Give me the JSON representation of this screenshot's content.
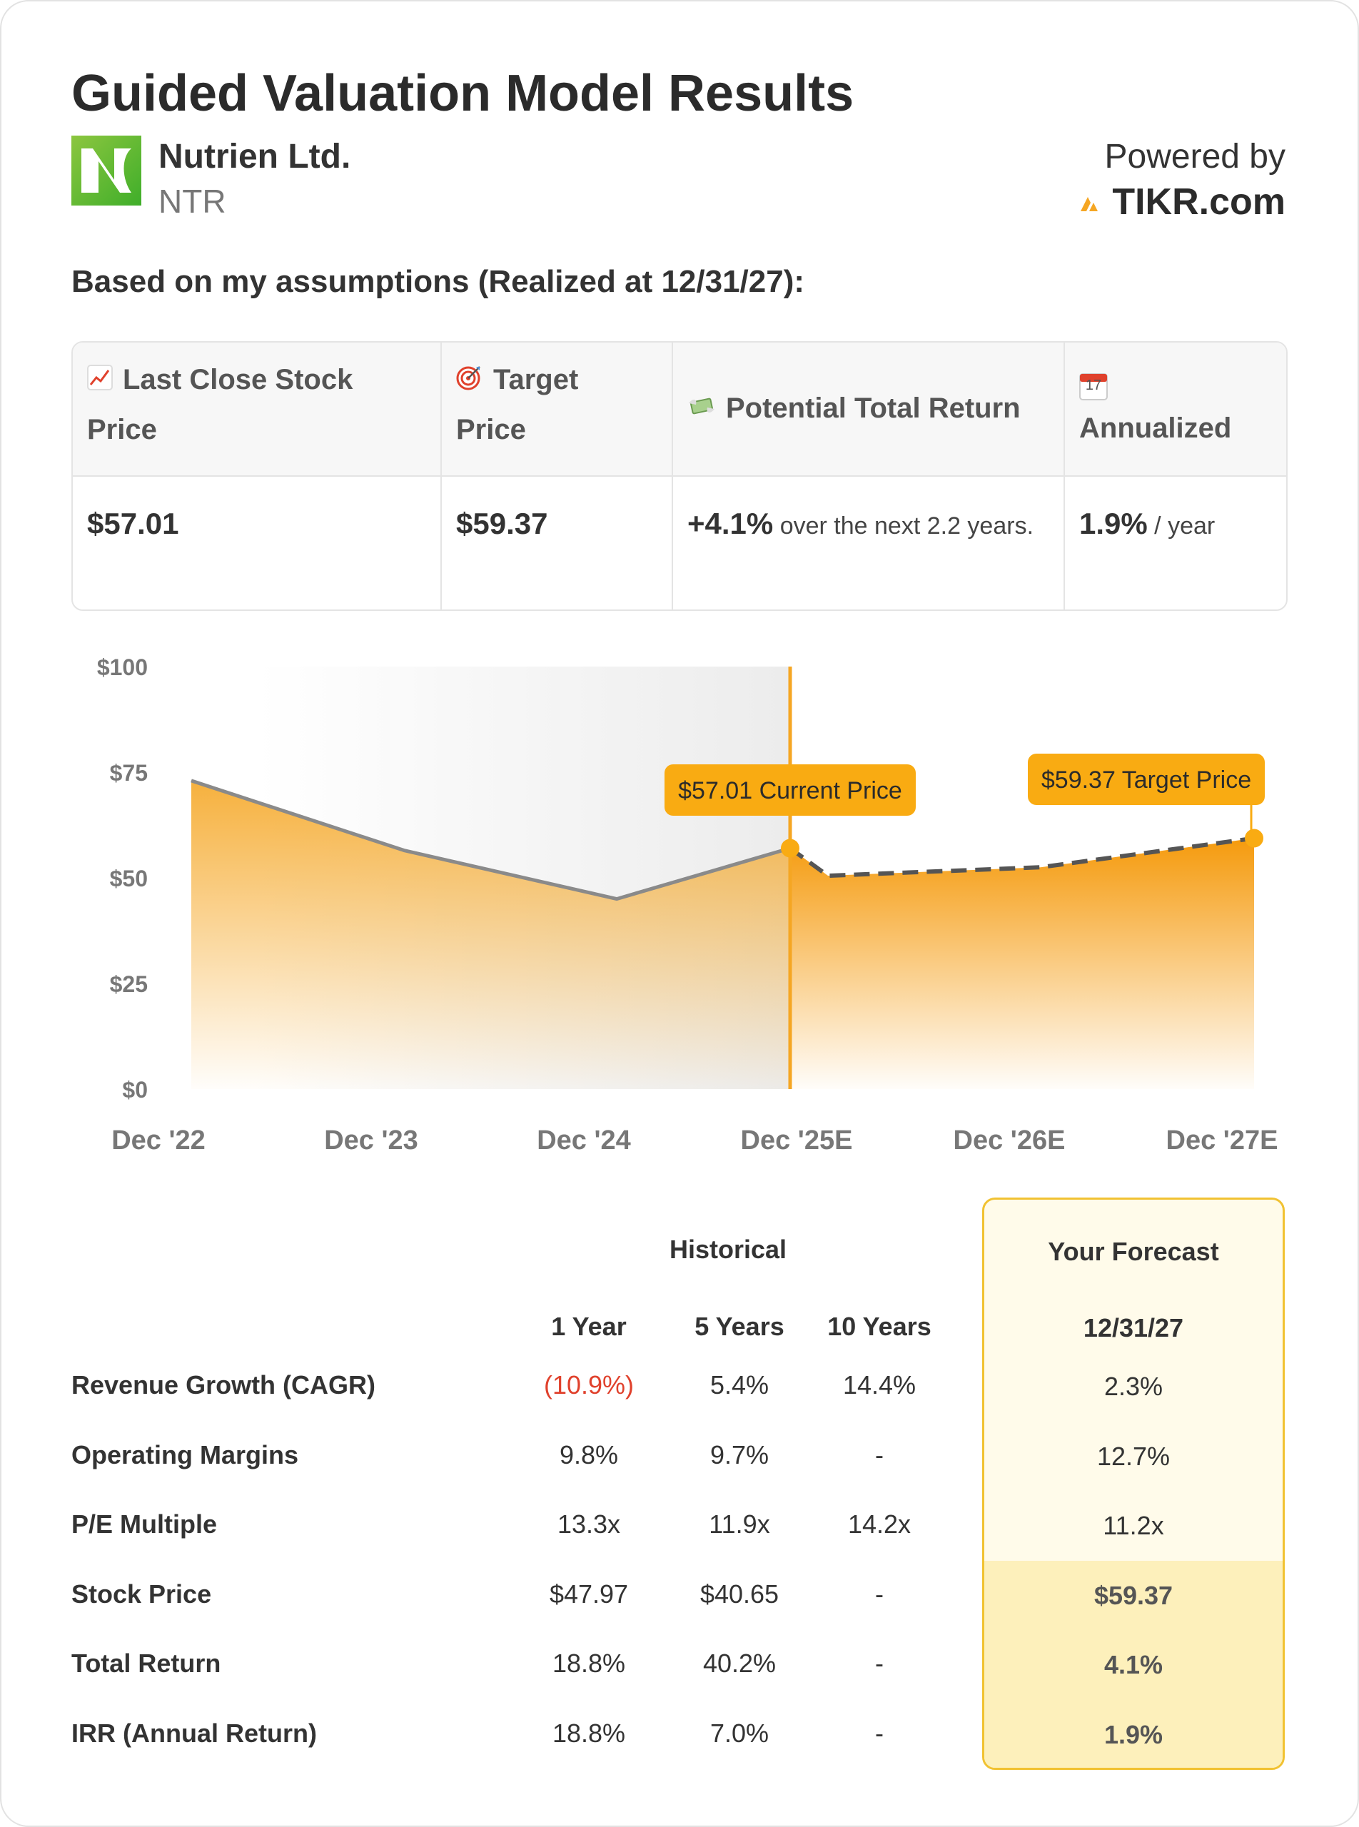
{
  "header": {
    "title": "Guided Valuation Model Results",
    "company_name": "Nutrien Ltd.",
    "ticker": "NTR",
    "powered_by": "Powered by",
    "brand": "TIKR.com"
  },
  "subtitle": "Based on my assumptions (Realized at 12/31/27):",
  "summary": {
    "columns": [
      {
        "icon": "chart-increasing-icon",
        "label_line1": "Last Close Stock",
        "label_line2": "Price",
        "value": "$57.01",
        "suffix": ""
      },
      {
        "icon": "target-icon",
        "label_line1": "Target",
        "label_line2": "Price",
        "value": "$59.37",
        "suffix": ""
      },
      {
        "icon": "money-wings-icon",
        "label_line1": "Potential Total Return",
        "label_line2": "",
        "value": "+4.1%",
        "suffix": " over the next 2.2 years."
      },
      {
        "icon": "calendar-icon",
        "label_line1": "",
        "label_line2": "Annualized",
        "value": "1.9%",
        "suffix": " / year",
        "calendar_day": "17"
      }
    ]
  },
  "chart_data": {
    "type": "area",
    "x_labels": [
      "Dec '22",
      "Dec '23",
      "Dec '24",
      "Dec '25E",
      "Dec '26E",
      "Dec '27E"
    ],
    "y_ticks": [
      "$0",
      "$25",
      "$50",
      "$75",
      "$100"
    ],
    "ylim": [
      0,
      100
    ],
    "historical": {
      "x": [
        "Dec '22",
        "Dec '23",
        "Dec '24",
        "Current"
      ],
      "values": [
        73,
        56.5,
        45,
        57.01
      ]
    },
    "forecast": {
      "x": [
        "Current",
        "Dec '25E",
        "Dec '26E",
        "Dec '27E"
      ],
      "values": [
        57.01,
        50.5,
        52.5,
        59.37
      ]
    },
    "annotations": [
      {
        "label": "$57.01 Current Price",
        "value": 57.01
      },
      {
        "label": "$59.37 Target Price",
        "value": 59.37
      }
    ],
    "colors": {
      "accent": "#f5a623",
      "line": "#8a8a8a",
      "badge": "#f9ab12"
    }
  },
  "metrics": {
    "historical_label": "Historical",
    "forecast_label": "Your Forecast",
    "columns": [
      "1 Year",
      "5 Years",
      "10 Years"
    ],
    "forecast_date": "12/31/27",
    "rows": [
      {
        "label": "Revenue Growth (CAGR)",
        "values": [
          "(10.9%)",
          "5.4%",
          "14.4%"
        ],
        "forecast": "2.3%"
      },
      {
        "label": "Operating Margins",
        "values": [
          "9.8%",
          "9.7%",
          "-"
        ],
        "forecast": "12.7%"
      },
      {
        "label": "P/E Multiple",
        "values": [
          "13.3x",
          "11.9x",
          "14.2x"
        ],
        "forecast": "11.2x"
      },
      {
        "label": "Stock Price",
        "values": [
          "$47.97",
          "$40.65",
          "-"
        ],
        "forecast": "$59.37"
      },
      {
        "label": "Total Return",
        "values": [
          "18.8%",
          "40.2%",
          "-"
        ],
        "forecast": "4.1%"
      },
      {
        "label": "IRR (Annual Return)",
        "values": [
          "18.8%",
          "7.0%",
          "-"
        ],
        "forecast": "1.9%"
      }
    ]
  }
}
